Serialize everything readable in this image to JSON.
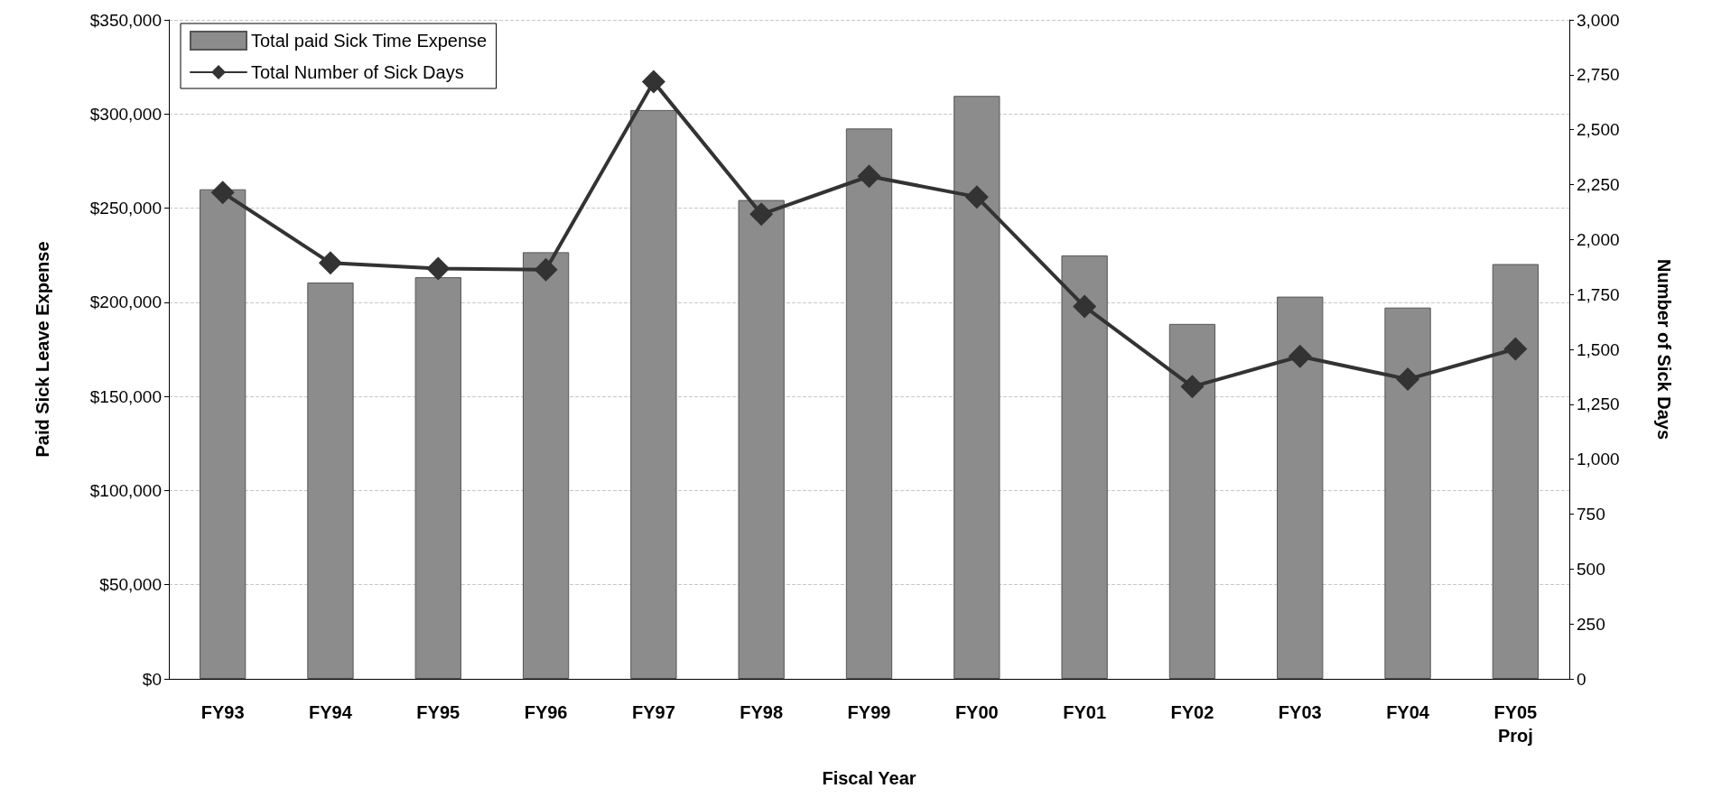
{
  "chart_data": {
    "type": "bar",
    "xlabel": "Fiscal Year",
    "ylabel": "Paid Sick Leave Expense",
    "y2label": "Number of Sick Days",
    "categories": [
      "FY93",
      "FY94",
      "FY95",
      "FY96",
      "FY97",
      "FY98",
      "FY99",
      "FY00",
      "FY01",
      "FY02",
      "FY03",
      "FY04",
      "FY05\nProj"
    ],
    "series": [
      {
        "name": "Total paid Sick Time Expense",
        "color": "#8c8c8c",
        "values": [
          260000,
          210500,
          213300,
          226600,
          302100,
          254300,
          292300,
          309600,
          224900,
          188500,
          203000,
          197200,
          220300
        ]
      },
      {
        "name": "Total Number of Sick Days",
        "type": "line",
        "axis": "y2",
        "color": "#333333",
        "marker": "diamond",
        "values": [
          2214,
          1893,
          1868,
          1863,
          2718,
          2115,
          2288,
          2194,
          1695,
          1330,
          1468,
          1364,
          1502
        ]
      }
    ],
    "ylim": [
      0,
      350000
    ],
    "yticks": [
      {
        "value": 0,
        "label": "$0"
      },
      {
        "value": 50000,
        "label": "$50,000"
      },
      {
        "value": 100000,
        "label": "$100,000"
      },
      {
        "value": 150000,
        "label": "$150,000"
      },
      {
        "value": 200000,
        "label": "$200,000"
      },
      {
        "value": 250000,
        "label": "$250,000"
      },
      {
        "value": 300000,
        "label": "$300,000"
      },
      {
        "value": 350000,
        "label": "$350,000"
      }
    ],
    "y2lim": [
      0,
      3000
    ],
    "y2ticks": [
      0,
      250,
      500,
      750,
      {
        "value": 1000,
        "label": "1,000"
      },
      {
        "value": 1250,
        "label": "1,250"
      },
      {
        "value": 1500,
        "label": "1,500"
      },
      {
        "value": 1750,
        "label": "1,750"
      },
      {
        "value": 2000,
        "label": "2,000"
      },
      {
        "value": 2250,
        "label": "2,250"
      },
      {
        "value": 2500,
        "label": "2,500"
      },
      {
        "value": 2750,
        "label": "2,750"
      },
      {
        "value": 3000,
        "label": "3,000"
      }
    ],
    "grid": "y",
    "legend": "top left"
  }
}
